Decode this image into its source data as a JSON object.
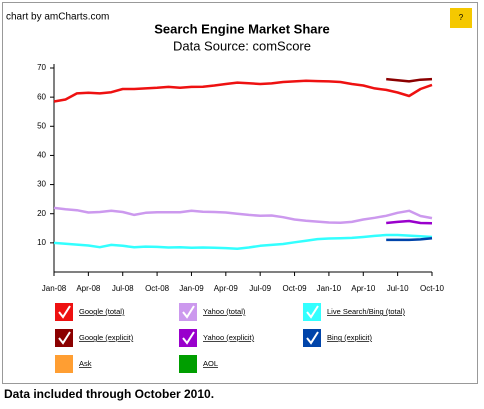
{
  "credit": "chart by amCharts.com",
  "help": "?",
  "footer": "Data included through October 2010.",
  "chart_data": {
    "type": "line",
    "title": "Search Engine Market Share",
    "subtitle": "Data Source: comScore",
    "categories": [
      "Jan-08",
      null,
      null,
      "Apr-08",
      null,
      null,
      "Jul-08",
      null,
      null,
      "Oct-08",
      null,
      null,
      "Jan-09",
      null,
      null,
      "Apr-09",
      null,
      null,
      "Jul-09",
      null,
      null,
      "Oct-09",
      null,
      null,
      "Jan-10",
      null,
      null,
      "Apr-10",
      null,
      null,
      "Jul-10",
      null,
      null,
      "Oct-10"
    ],
    "ylim": [
      0,
      70
    ],
    "yticks": [
      10,
      20,
      30,
      40,
      50,
      60,
      70
    ],
    "grid": false,
    "series": [
      {
        "name": "Google (total)",
        "color": "#ee1111",
        "values": [
          58.5,
          59.2,
          61.3,
          61.5,
          61.3,
          61.7,
          62.8,
          62.8,
          63,
          63.2,
          63.5,
          63.2,
          63.5,
          63.6,
          64,
          64.5,
          65,
          64.8,
          64.5,
          64.7,
          65.2,
          65.4,
          65.6,
          65.5,
          65.4,
          65.2,
          64.5,
          64,
          63,
          62.5,
          61.6,
          60.4,
          62.8,
          64.2
        ]
      },
      {
        "name": "Yahoo (total)",
        "color": "#cc99ee",
        "values": [
          22,
          21.5,
          21.2,
          20.4,
          20.6,
          21,
          20.6,
          19.6,
          20.3,
          20.5,
          20.5,
          20.5,
          21,
          20.7,
          20.6,
          20.4,
          20,
          19.6,
          19.3,
          19.4,
          18.8,
          18,
          17.6,
          17.3,
          17,
          16.9,
          17.2,
          18,
          18.6,
          19.3,
          20.3,
          21,
          19.2,
          18.5
        ]
      },
      {
        "name": "Live Search/Bing (total)",
        "color": "#33ffff",
        "values": [
          10,
          9.7,
          9.4,
          9.1,
          8.5,
          9.3,
          9,
          8.5,
          8.7,
          8.6,
          8.4,
          8.5,
          8.3,
          8.4,
          8.3,
          8.2,
          8,
          8.4,
          9,
          9.3,
          9.6,
          10.2,
          10.7,
          11.3,
          11.5,
          11.6,
          11.7,
          12,
          12.4,
          12.7,
          12.7,
          12.5,
          12.3,
          12
        ]
      },
      {
        "name": "Google (explicit)",
        "color": "#8b0000",
        "values": [
          null,
          null,
          null,
          null,
          null,
          null,
          null,
          null,
          null,
          null,
          null,
          null,
          null,
          null,
          null,
          null,
          null,
          null,
          null,
          null,
          null,
          null,
          null,
          null,
          null,
          null,
          null,
          null,
          null,
          66.2,
          65.8,
          65.4,
          66,
          66.2
        ]
      },
      {
        "name": "Yahoo (explicit)",
        "color": "#9900cc",
        "values": [
          null,
          null,
          null,
          null,
          null,
          null,
          null,
          null,
          null,
          null,
          null,
          null,
          null,
          null,
          null,
          null,
          null,
          null,
          null,
          null,
          null,
          null,
          null,
          null,
          null,
          null,
          null,
          null,
          null,
          16.8,
          17.2,
          17.5,
          16.8,
          16.7
        ]
      },
      {
        "name": "Bing (explicit)",
        "color": "#0044aa",
        "values": [
          null,
          null,
          null,
          null,
          null,
          null,
          null,
          null,
          null,
          null,
          null,
          null,
          null,
          null,
          null,
          null,
          null,
          null,
          null,
          null,
          null,
          null,
          null,
          null,
          null,
          null,
          null,
          null,
          null,
          11,
          11,
          11,
          11.2,
          11.6
        ]
      },
      {
        "name": "Ask",
        "color": "#ff9e32",
        "values": [
          null,
          null,
          null,
          null,
          null,
          null,
          null,
          null,
          null,
          null,
          null,
          null,
          null,
          null,
          null,
          null,
          null,
          null,
          null,
          null,
          null,
          null,
          null,
          null,
          null,
          null,
          null,
          null,
          null,
          null,
          null,
          null,
          null,
          null
        ]
      },
      {
        "name": "AOL",
        "color": "#009e00",
        "values": [
          null,
          null,
          null,
          null,
          null,
          null,
          null,
          null,
          null,
          null,
          null,
          null,
          null,
          null,
          null,
          null,
          null,
          null,
          null,
          null,
          null,
          null,
          null,
          null,
          null,
          null,
          null,
          null,
          null,
          null,
          null,
          null,
          null,
          null
        ]
      }
    ]
  }
}
